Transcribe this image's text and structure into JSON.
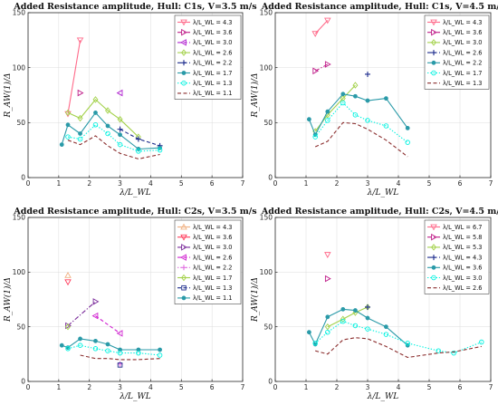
{
  "chart_data": [
    {
      "type": "line",
      "title": "Added Resistance amplitude, Hull: C1s, V=3.5 m/s",
      "xlabel": "λ/L_WL",
      "ylabel": "R_AW(1)/Δ",
      "xlim": [
        0,
        7
      ],
      "ylim": [
        0,
        150
      ],
      "xticks": [
        0,
        1,
        2,
        3,
        4,
        5,
        6,
        7
      ],
      "yticks": [
        0,
        50,
        100,
        150
      ],
      "grid": true,
      "legend_position": "top-right",
      "series": [
        {
          "name": "λ/L_WL = 4.3",
          "color": "#ff6a8a",
          "marker": "triangle-down",
          "dash": "solid",
          "x": [
            1.3,
            1.7
          ],
          "y": [
            58,
            125
          ]
        },
        {
          "name": "λ/L_WL = 3.6",
          "color": "#c0208a",
          "marker": "triangle-right",
          "dash": "dashdot",
          "x": [
            1.7
          ],
          "y": [
            77
          ]
        },
        {
          "name": "λ/L_WL = 3.0",
          "color": "#b020d0",
          "marker": "triangle-left",
          "dash": "dashed",
          "x": [
            3.0
          ],
          "y": [
            77
          ]
        },
        {
          "name": "λ/L_WL = 2.6",
          "color": "#a3d14a",
          "marker": "diamond",
          "dash": "solid",
          "x": [
            1.3,
            1.7,
            2.2,
            2.6,
            3.0,
            3.6
          ],
          "y": [
            59,
            54,
            71,
            61,
            53,
            37
          ]
        },
        {
          "name": "λ/L_WL = 2.2",
          "color": "#1c2b8c",
          "marker": "plus",
          "dash": "dashed",
          "x": [
            3.0,
            3.6,
            4.3
          ],
          "y": [
            44,
            35,
            29
          ]
        },
        {
          "name": "λ/L_WL = 1.7",
          "color": "#2a9aa8",
          "marker": "circle",
          "dash": "solid",
          "x": [
            1.1,
            1.3,
            1.7,
            2.2,
            2.6,
            3.0,
            3.6,
            4.3
          ],
          "y": [
            30,
            48,
            40,
            59,
            47,
            39,
            26,
            27
          ]
        },
        {
          "name": "λ/L_WL = 1.3",
          "color": "#00f2e0",
          "marker": "circle-open",
          "dash": "dotted",
          "x": [
            1.3,
            1.7,
            2.2,
            2.6,
            3.0,
            3.6,
            4.3
          ],
          "y": [
            37,
            35,
            48,
            40,
            30,
            24,
            25
          ]
        },
        {
          "name": "λ/L_WL = 1.1",
          "color": "#8b2e2e",
          "marker": "none",
          "dash": "dashed",
          "x": [
            1.3,
            1.7,
            2.2,
            2.6,
            3.0,
            3.6,
            4.3
          ],
          "y": [
            34,
            30,
            38,
            29,
            22,
            17,
            21
          ]
        }
      ]
    },
    {
      "type": "line",
      "title": "Added Resistance amplitude, Hull: C1s, V=4.5 m/s",
      "xlabel": "λ/L_WL",
      "ylabel": "R_AW(1)/Δ",
      "xlim": [
        0,
        7
      ],
      "ylim": [
        0,
        150
      ],
      "xticks": [
        0,
        1,
        2,
        3,
        4,
        5,
        6,
        7
      ],
      "yticks": [
        0,
        50,
        100,
        150
      ],
      "grid": true,
      "legend_position": "top-right",
      "series": [
        {
          "name": "λ/L_WL = 4.3",
          "color": "#ff6a8a",
          "marker": "triangle-down",
          "dash": "solid",
          "x": [
            1.3,
            1.7
          ],
          "y": [
            131,
            143
          ]
        },
        {
          "name": "λ/L_WL = 3.6",
          "color": "#c0208a",
          "marker": "triangle-right",
          "dash": "dashdot",
          "x": [
            1.3,
            1.7
          ],
          "y": [
            97,
            103
          ]
        },
        {
          "name": "λ/L_WL = 3.0",
          "color": "#a3d14a",
          "marker": "diamond",
          "dash": "solid",
          "x": [
            1.3,
            1.7,
            2.2,
            2.6
          ],
          "y": [
            42,
            57,
            72,
            84
          ]
        },
        {
          "name": "λ/L_WL = 2.6",
          "color": "#1c2b8c",
          "marker": "plus",
          "dash": "dashed",
          "x": [
            3.0
          ],
          "y": [
            94
          ]
        },
        {
          "name": "λ/L_WL = 2.2",
          "color": "#2a9aa8",
          "marker": "circle",
          "dash": "solid",
          "x": [
            1.1,
            1.3,
            1.7,
            2.2,
            2.6,
            3.0,
            3.6,
            4.3
          ],
          "y": [
            53,
            39,
            60,
            76,
            74,
            70,
            72,
            45
          ]
        },
        {
          "name": "λ/L_WL = 1.7",
          "color": "#00f2e0",
          "marker": "circle-open",
          "dash": "dotted",
          "x": [
            1.3,
            1.7,
            2.2,
            2.6,
            3.0,
            3.6,
            4.3
          ],
          "y": [
            37,
            52,
            68,
            57,
            52,
            47,
            32
          ]
        },
        {
          "name": "λ/L_WL = 1.3",
          "color": "#8b2e2e",
          "marker": "none",
          "dash": "dashed",
          "x": [
            1.3,
            1.7,
            2.2,
            2.6,
            3.0,
            3.6,
            4.3
          ],
          "y": [
            28,
            33,
            50,
            49,
            44,
            34,
            19
          ]
        }
      ]
    },
    {
      "type": "line",
      "title": "Added Resistance amplitude, Hull: C2s, V=3.5 m/s",
      "xlabel": "λ/L_WL",
      "ylabel": "R_AW(1)/Δ",
      "xlim": [
        0,
        7
      ],
      "ylim": [
        0,
        150
      ],
      "xticks": [
        0,
        1,
        2,
        3,
        4,
        5,
        6,
        7
      ],
      "yticks": [
        0,
        50,
        100,
        150
      ],
      "grid": true,
      "legend_position": "top-right",
      "series": [
        {
          "name": "λ/L_WL = 4.3",
          "color": "#f0b080",
          "marker": "triangle-up",
          "dash": "solid",
          "x": [
            1.3
          ],
          "y": [
            97
          ]
        },
        {
          "name": "λ/L_WL = 3.6",
          "color": "#ff3a5a",
          "marker": "triangle-down",
          "dash": "solid",
          "x": [
            1.3
          ],
          "y": [
            91
          ]
        },
        {
          "name": "λ/L_WL = 3.0",
          "color": "#7a2a9a",
          "marker": "triangle-right",
          "dash": "dashdot",
          "x": [
            1.3,
            2.2
          ],
          "y": [
            51,
            73
          ]
        },
        {
          "name": "λ/L_WL = 2.6",
          "color": "#d020d0",
          "marker": "triangle-left",
          "dash": "dashed",
          "x": [
            2.2,
            3.0
          ],
          "y": [
            60,
            44
          ]
        },
        {
          "name": "λ/L_WL = 2.2",
          "color": "#e070e0",
          "marker": "plus",
          "dash": "dotted",
          "x": [
            3.0
          ],
          "y": [
            16
          ]
        },
        {
          "name": "λ/L_WL = 1.7",
          "color": "#a3d14a",
          "marker": "diamond",
          "dash": "solid",
          "x": [
            1.3
          ],
          "y": [
            50
          ]
        },
        {
          "name": "λ/L_WL = 1.3",
          "color": "#1c2b8c",
          "marker": "square",
          "dash": "dashed",
          "x": [
            3.0
          ],
          "y": [
            15
          ]
        },
        {
          "name": "λ/L_WL = 1.1",
          "color": "#2a9aa8",
          "marker": "circle",
          "dash": "solid",
          "x": [
            1.1,
            1.3,
            1.7,
            2.2,
            2.6,
            3.0,
            3.6,
            4.3
          ],
          "y": [
            33,
            31,
            39,
            37,
            34,
            29,
            29,
            29
          ]
        }
      ],
      "extra_series": [
        {
          "color": "#00f2e0",
          "marker": "circle-open",
          "dash": "dotted",
          "x": [
            1.3,
            1.7,
            2.2,
            2.6,
            3.0,
            3.6,
            4.3
          ],
          "y": [
            30,
            33,
            30,
            28,
            26,
            26,
            24
          ]
        },
        {
          "color": "#8b2e2e",
          "marker": "none",
          "dash": "dashed",
          "x": [
            1.7,
            2.2,
            2.6,
            3.0,
            3.6,
            4.3
          ],
          "y": [
            24,
            21,
            21,
            20,
            20,
            21
          ]
        }
      ]
    },
    {
      "type": "line",
      "title": "Added Resistance amplitude, Hull: C2s, V=4.5 m/s",
      "xlabel": "λ/L_WL",
      "ylabel": "R_AW(1)/Δ",
      "xlim": [
        0,
        7
      ],
      "ylim": [
        0,
        150
      ],
      "xticks": [
        0,
        1,
        2,
        3,
        4,
        5,
        6,
        7
      ],
      "yticks": [
        0,
        50,
        100,
        150
      ],
      "grid": true,
      "legend_position": "top-right",
      "series": [
        {
          "name": "λ/L_WL = 6.7",
          "color": "#ff6a8a",
          "marker": "triangle-down",
          "dash": "solid",
          "x": [
            1.7
          ],
          "y": [
            116
          ]
        },
        {
          "name": "λ/L_WL = 5.8",
          "color": "#c0208a",
          "marker": "triangle-right",
          "dash": "dashdot",
          "x": [
            1.7
          ],
          "y": [
            94
          ]
        },
        {
          "name": "λ/L_WL = 5.3",
          "color": "#a3d14a",
          "marker": "diamond",
          "dash": "solid",
          "x": [
            1.7,
            2.2,
            2.6,
            3.0
          ],
          "y": [
            50,
            57,
            63,
            68
          ]
        },
        {
          "name": "λ/L_WL = 4.3",
          "color": "#1c2b8c",
          "marker": "plus",
          "dash": "dashed",
          "x": [
            3.0
          ],
          "y": [
            68
          ]
        },
        {
          "name": "λ/L_WL = 3.6",
          "color": "#2a9aa8",
          "marker": "circle",
          "dash": "solid",
          "x": [
            1.1,
            1.3,
            1.7,
            2.2,
            2.6,
            3.0,
            3.6,
            4.3
          ],
          "y": [
            45,
            34,
            59,
            66,
            65,
            58,
            50,
            33
          ]
        },
        {
          "name": "λ/L_WL = 3.0",
          "color": "#00f2e0",
          "marker": "circle-open",
          "dash": "dotted",
          "x": [
            1.3,
            1.7,
            2.2,
            2.6,
            3.0,
            3.6,
            4.3,
            5.3,
            5.8,
            6.7
          ],
          "y": [
            35,
            45,
            55,
            51,
            48,
            43,
            35,
            28,
            26,
            36
          ]
        },
        {
          "name": "λ/L_WL = 2.6",
          "color": "#8b2e2e",
          "marker": "none",
          "dash": "dashed",
          "x": [
            1.3,
            1.7,
            2.2,
            2.6,
            3.0,
            3.6,
            4.3,
            5.3,
            5.8,
            6.7
          ],
          "y": [
            28,
            25,
            38,
            40,
            39,
            32,
            22,
            26,
            27,
            32
          ]
        }
      ]
    }
  ]
}
